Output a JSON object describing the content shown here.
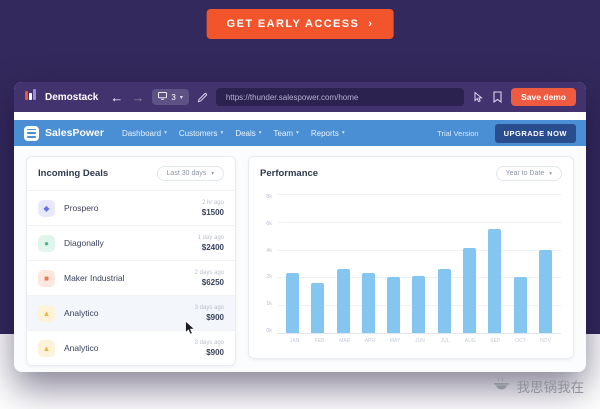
{
  "page": {
    "cta_label": "GET EARLY ACCESS",
    "accent_orange": "#f2552c",
    "background_purple": "#33295c"
  },
  "icons": {
    "chevron_down": "▾",
    "back_arrow": "←",
    "forward_arrow": "→",
    "cta_chevron": "›"
  },
  "browser": {
    "brand": "Demostack",
    "screens_count": "3",
    "url": "https://thunder.salespower.com/home",
    "save_button_label": "Save demo"
  },
  "app": {
    "brand": "SalesPower",
    "nav_items": [
      {
        "label": "Dashboard"
      },
      {
        "label": "Customers"
      },
      {
        "label": "Deals"
      },
      {
        "label": "Team"
      },
      {
        "label": "Reports"
      }
    ],
    "trial_label": "Trial Version",
    "upgrade_label": "UPGRADE NOW",
    "header_color": "#4a8ed3"
  },
  "deals_panel": {
    "title": "Incoming Deals",
    "filter_label": "Last 30 days",
    "rows": [
      {
        "name": "Prospero",
        "time": "2 hr ago",
        "amount": "$1500",
        "glyph": "◆",
        "icon_style": "background:#e8eafc;color:#6672e8"
      },
      {
        "name": "Diagonally",
        "time": "1 day ago",
        "amount": "$2400",
        "glyph": "●",
        "icon_style": "background:#e1f5eb;color:#3dbf8a"
      },
      {
        "name": "Maker Industrial",
        "time": "2 days ago",
        "amount": "$6250",
        "glyph": "■",
        "icon_style": "background:#fde8e0;color:#f0764c"
      },
      {
        "name": "Analytico",
        "time": "3 days ago",
        "amount": "$900",
        "glyph": "▲",
        "icon_style": "background:#fdf3da;color:#edb83f"
      },
      {
        "name": "Analytico",
        "time": "3 days ago",
        "amount": "$900",
        "glyph": "▲",
        "icon_style": "background:#fdf3da;color:#edb83f"
      }
    ]
  },
  "performance_panel": {
    "title": "Performance",
    "filter_label": "Year to Date"
  },
  "chart_data": {
    "type": "bar",
    "title": "Performance",
    "categories": [
      "JAN",
      "FEB",
      "MAR",
      "APR",
      "MAY",
      "JUN",
      "JUL",
      "AUG",
      "SEP",
      "OCT",
      "NOV"
    ],
    "values": [
      2.3,
      1.8,
      2.6,
      2.3,
      2.0,
      2.1,
      2.6,
      4.1,
      5.5,
      2.0,
      4.0
    ],
    "unit": "k",
    "ytick_labels": [
      "8k",
      "6k",
      "4k",
      "2k",
      "1k",
      "0k"
    ],
    "ytick_values": [
      8,
      6,
      4,
      2,
      1,
      0
    ],
    "bar_color": "#85c6f1",
    "grid": true,
    "legend": "none",
    "xlabel": "",
    "ylabel": ""
  },
  "watermark": {
    "text": "我思锅我在"
  }
}
